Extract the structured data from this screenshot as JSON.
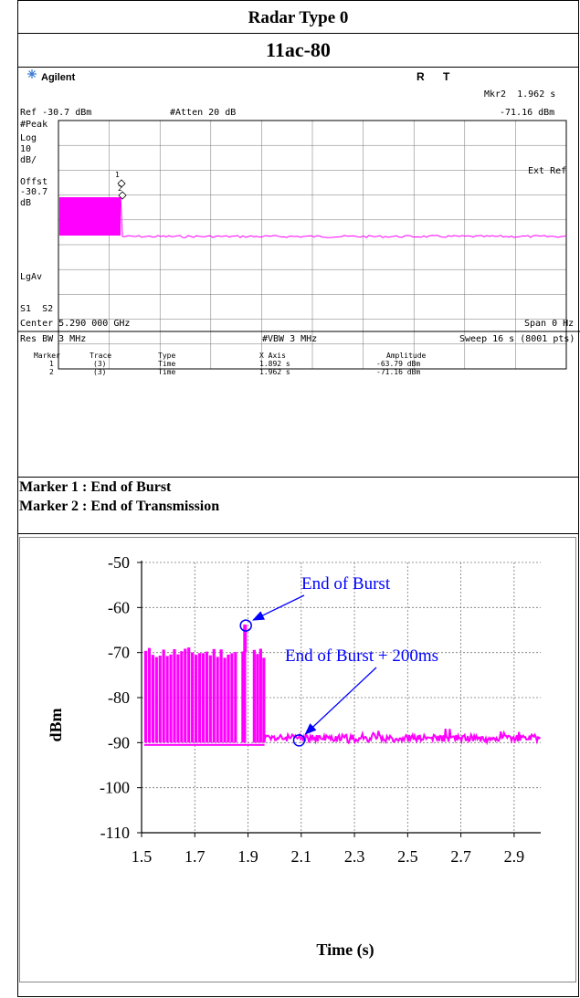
{
  "header": {
    "title": "Radar Type 0",
    "subtitle": "11ac-80"
  },
  "analyzer": {
    "brand": "Agilent",
    "status_r": "R",
    "status_t": "T",
    "marker_readout_1": "Mkr2  1.962 s",
    "marker_readout_2": "-71.16 dBm",
    "ref_level": "Ref -30.7 dBm",
    "atten": "#Atten 20 dB",
    "left_labels": [
      "#Peak",
      "Log",
      "10",
      "dB/",
      "Offst",
      "-30.7",
      "dB"
    ],
    "ext_ref": "Ext Ref",
    "lgav": "LgAv",
    "s1s2": "S1  S2",
    "center": "Center 5.290 000 GHz",
    "span": "Span 0 Hz",
    "res_bw": "Res BW 3 MHz",
    "vbw": "#VBW 3 MHz",
    "sweep": "Sweep 16 s (8001 pts)",
    "marker_labels": [
      "1",
      "2"
    ],
    "table": {
      "headers": [
        "Marker",
        "Trace",
        "Type",
        "X Axis",
        "Amplitude"
      ],
      "rows": [
        [
          "1",
          "(3)",
          "Time",
          "1.892 s",
          "-63.79 dBm"
        ],
        [
          "2",
          "(3)",
          "Time",
          "1.962 s",
          "-71.16 dBm"
        ]
      ]
    }
  },
  "notes": {
    "marker1": "Marker 1 : End of Burst",
    "marker2": "Marker 2 : End of Transmission"
  },
  "colors": {
    "trace": "#ff00ff",
    "annotation": "#0000ff",
    "grid": "#c8c8c8"
  },
  "chart_data": {
    "type": "line",
    "xlabel": "Time (s)",
    "ylabel": "dBm",
    "xlim": [
      1.5,
      3.0
    ],
    "ylim": [
      -110,
      -50
    ],
    "xticks": [
      "1.5",
      "1.7",
      "1.9",
      "2.1",
      "2.3",
      "2.5",
      "2.7",
      "2.9"
    ],
    "yticks": [
      "-50",
      "-60",
      "-70",
      "-80",
      "-90",
      "-100",
      "-110"
    ],
    "grid": true,
    "burst_start_s": 1.5,
    "burst_end_s": 1.962,
    "burst_high_dbm": -70,
    "burst_low_dbm": -90,
    "peak_s": 1.892,
    "peak_dbm": -63.79,
    "noise_floor_dbm": -89,
    "annotations": [
      {
        "text": "End of Burst",
        "target_x": 1.892,
        "target_y": -64
      },
      {
        "text": "End of Burst + 200ms",
        "target_x": 2.092,
        "target_y": -89.5
      }
    ]
  }
}
